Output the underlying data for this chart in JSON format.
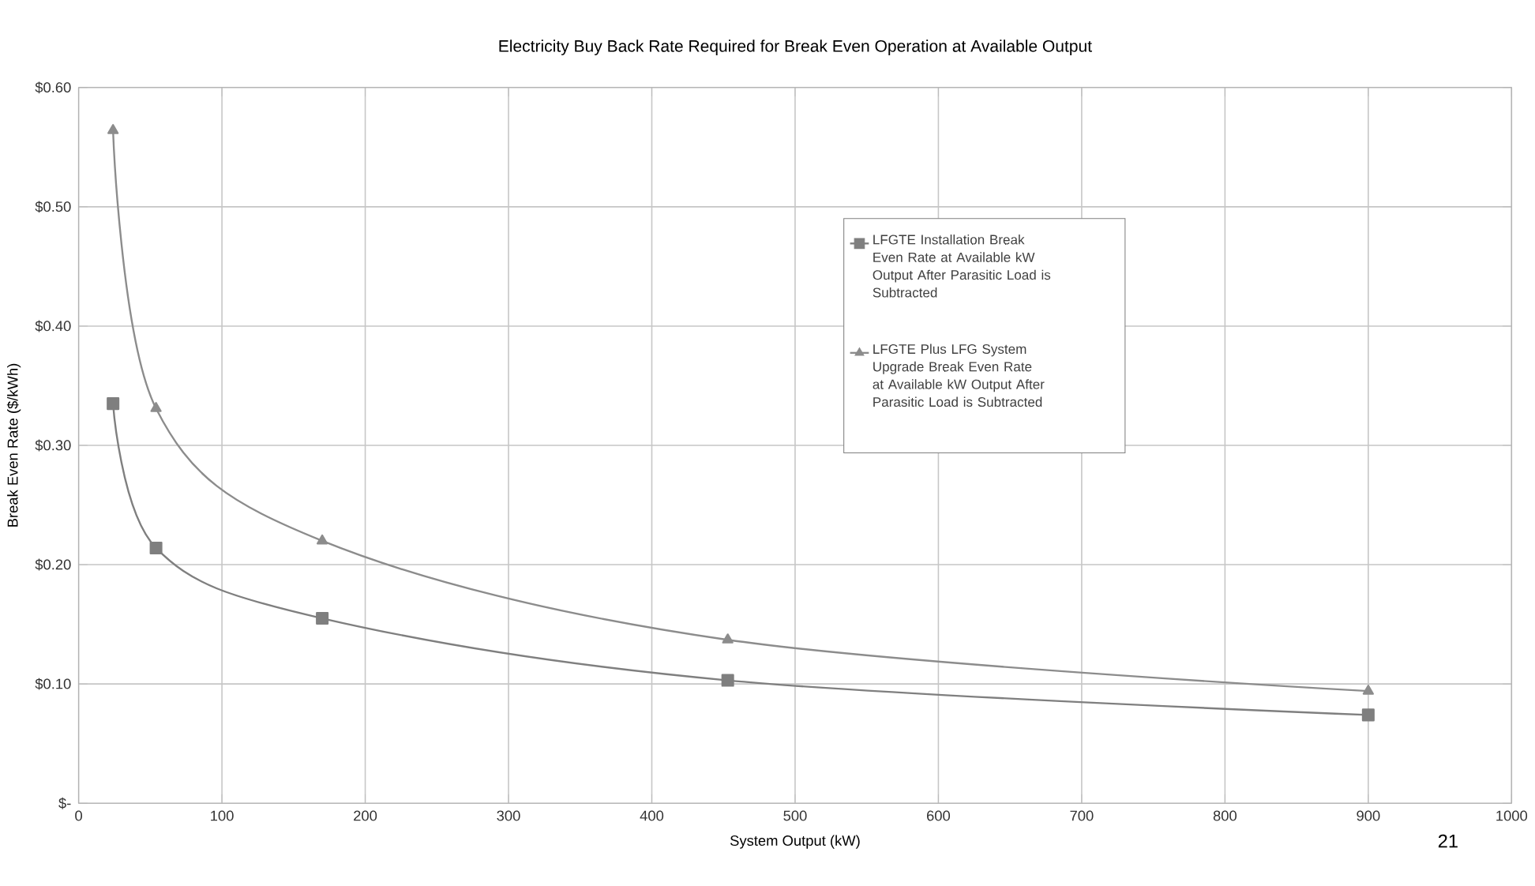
{
  "chart_data": {
    "type": "line",
    "title": "Electricity Buy Back Rate Required for Break Even Operation at Available Output",
    "xlabel": "System Output (kW)",
    "ylabel": "Break Even Rate ($/kWh)",
    "xlim": [
      0,
      1000
    ],
    "xticks": [
      0,
      100,
      200,
      300,
      400,
      500,
      600,
      700,
      800,
      900,
      1000
    ],
    "ylim": [
      0,
      0.6
    ],
    "yticks": [
      {
        "value": 0,
        "label": "$-"
      },
      {
        "value": 0.1,
        "label": "$0.10"
      },
      {
        "value": 0.2,
        "label": "$0.20"
      },
      {
        "value": 0.3,
        "label": "$0.30"
      },
      {
        "value": 0.4,
        "label": "$0.40"
      },
      {
        "value": 0.5,
        "label": "$0.50"
      },
      {
        "value": 0.6,
        "label": "$0.60"
      }
    ],
    "grid": true,
    "legend": "right",
    "series": [
      {
        "name": "LFGTE Installation Break Even Rate at Available kW Output After Parasitic Load is Subtracted",
        "color": "#7f7f7f",
        "marker": "square",
        "x": [
          24,
          54,
          170,
          453,
          900
        ],
        "values": [
          0.335,
          0.214,
          0.155,
          0.103,
          0.074
        ]
      },
      {
        "name": "LFGTE Plus LFG System Upgrade Break Even Rate at Available kW Output After Parasitic Load is Subtracted",
        "color": "#8c8c8c",
        "marker": "triangle",
        "x": [
          24,
          54,
          170,
          453,
          900
        ],
        "values": [
          0.564,
          0.331,
          0.22,
          0.137,
          0.094
        ]
      }
    ],
    "annotations": [
      "21"
    ]
  }
}
